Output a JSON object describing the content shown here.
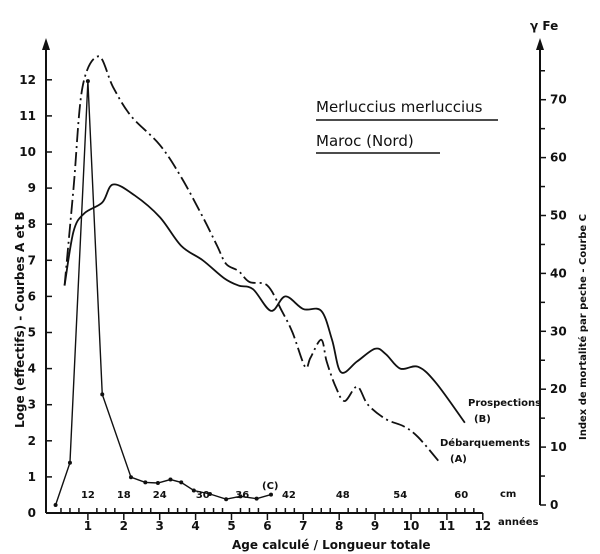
{
  "chart_data": {
    "type": "line",
    "title": "Merluccius merluccius",
    "subtitle": "Maroc (Nord)",
    "xlabel": "Age calculé / Longueur totale",
    "x_unit": "années",
    "x_length_unit": "cm",
    "ylabel_left": "Loge (effectifs) - Courbes A et B",
    "ylabel_right": "Index de mortalité par peche - Courbe C",
    "ylabel_right_symbol": "γ Fe",
    "xlim": [
      0,
      12
    ],
    "ylim_left": [
      0,
      12
    ],
    "ylim_right": [
      0,
      70
    ],
    "x_ticks": [
      "1",
      "2",
      "3",
      "4",
      "5",
      "6",
      "7",
      "8",
      "9",
      "10",
      "11",
      "12"
    ],
    "y_left_ticks": [
      "0",
      "1",
      "2",
      "3",
      "4",
      "5",
      "6",
      "7",
      "8",
      "9",
      "10",
      "11",
      "12"
    ],
    "y_right_ticks": [
      "0",
      "10",
      "20",
      "30",
      "40",
      "50",
      "60",
      "70"
    ],
    "length_ticks": [
      {
        "label": "12",
        "age": 1.0
      },
      {
        "label": "18",
        "age": 2.0
      },
      {
        "label": "24",
        "age": 3.0
      },
      {
        "label": "30",
        "age": 4.2
      },
      {
        "label": "36",
        "age": 5.3
      },
      {
        "label": "42",
        "age": 6.6
      },
      {
        "label": "48",
        "age": 8.1
      },
      {
        "label": "54",
        "age": 9.7
      },
      {
        "label": "60",
        "age": 11.4
      }
    ],
    "grid": false,
    "series": [
      {
        "name": "Débarquements",
        "tag": "(A)",
        "axis": "left",
        "style": "dash-dot",
        "x": [
          0.35,
          0.6,
          0.85,
          1.3,
          1.7,
          2.2,
          3.0,
          3.6,
          4.2,
          4.6,
          4.85,
          5.2,
          5.5,
          6.0,
          6.4,
          6.7,
          7.05,
          7.2,
          7.5,
          7.65,
          7.9,
          8.15,
          8.5,
          8.8,
          9.3,
          9.8,
          10.2,
          10.8
        ],
        "y": [
          6.3,
          9.0,
          11.8,
          12.65,
          11.8,
          11.0,
          10.2,
          9.3,
          8.2,
          7.4,
          6.9,
          6.7,
          6.4,
          6.3,
          5.6,
          5.0,
          4.05,
          4.3,
          4.8,
          4.2,
          3.5,
          3.1,
          3.5,
          3.0,
          2.6,
          2.4,
          2.1,
          1.4
        ]
      },
      {
        "name": "Prospections",
        "tag": "(B)",
        "axis": "left",
        "style": "solid",
        "x": [
          0.35,
          0.6,
          0.9,
          1.4,
          1.7,
          2.3,
          3.0,
          3.6,
          4.2,
          4.8,
          5.2,
          5.6,
          6.1,
          6.5,
          7.0,
          7.5,
          7.8,
          8.05,
          8.5,
          9.0,
          9.3,
          9.7,
          10.2,
          10.7,
          11.5
        ],
        "y": [
          6.3,
          7.8,
          8.3,
          8.6,
          9.1,
          8.8,
          8.2,
          7.4,
          7.0,
          6.5,
          6.3,
          6.2,
          5.6,
          6.0,
          5.65,
          5.6,
          4.8,
          3.9,
          4.2,
          4.55,
          4.4,
          4.0,
          4.05,
          3.6,
          2.5
        ]
      },
      {
        "name": "",
        "tag": "(C)",
        "axis": "right",
        "style": "solid-markers",
        "x": [
          0.1,
          0.5,
          1.0,
          1.4,
          2.2,
          2.6,
          2.95,
          3.3,
          3.6,
          3.95,
          4.4,
          4.85,
          5.25,
          5.7,
          6.1
        ],
        "y": [
          0,
          7.3,
          73.2,
          19.1,
          4.8,
          3.9,
          3.8,
          4.4,
          3.9,
          2.5,
          1.9,
          1.0,
          1.5,
          1.1,
          1.8
        ]
      }
    ]
  }
}
